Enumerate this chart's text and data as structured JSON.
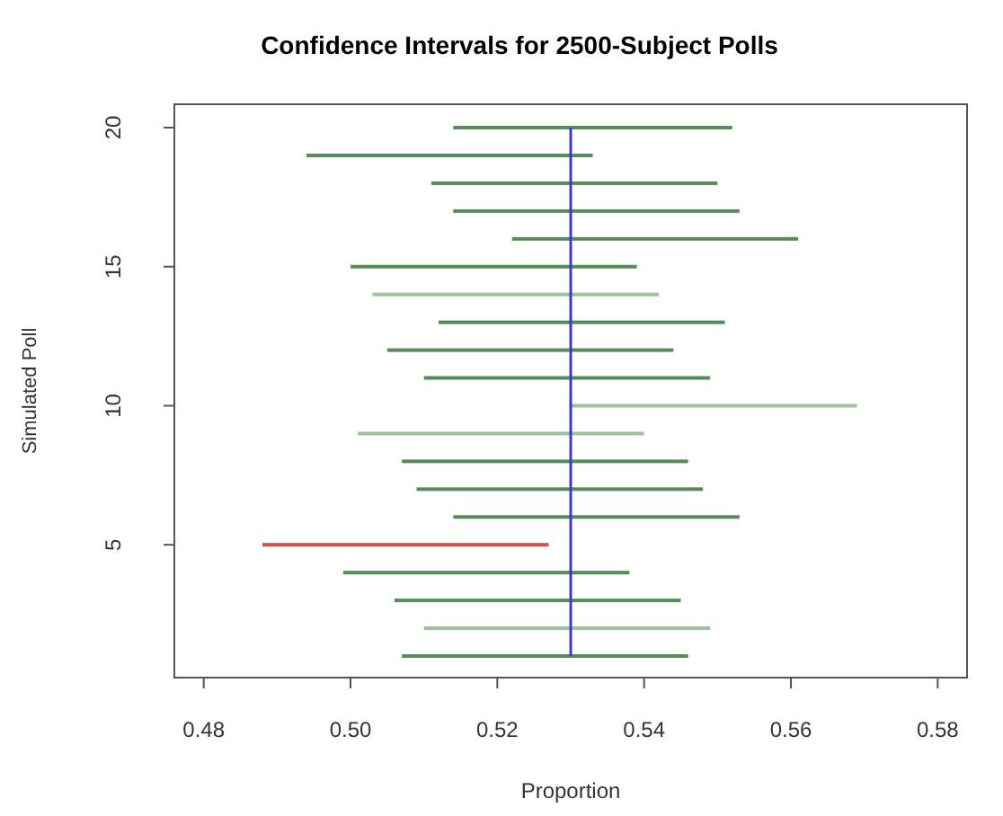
{
  "chart_data": {
    "type": "bar",
    "orientation": "horizontal",
    "title": "Confidence Intervals for 2500-Subject Polls",
    "xlabel": "Proportion",
    "ylabel": "Simulated Poll",
    "categories": [
      "20",
      null,
      null,
      null,
      null,
      "15",
      null,
      null,
      null,
      null,
      "10",
      null,
      null,
      null,
      null,
      "5",
      null,
      null,
      null,
      null
    ],
    "base": [
      0.514,
      0.494,
      0.511,
      0.514,
      0.522,
      0.5,
      0.503,
      0.512,
      0.505,
      0.51,
      0.53,
      0.501,
      0.507,
      0.509,
      0.514,
      0.488,
      0.499,
      0.506,
      0.51,
      0.507
    ],
    "values": [
      0.038,
      0.039,
      0.039,
      0.039,
      0.039,
      0.039,
      0.039,
      0.039,
      0.039,
      0.039,
      0.039,
      0.039,
      0.039,
      0.039,
      0.039,
      0.039,
      0.039,
      0.039,
      0.039,
      0.039
    ],
    "colors": [
      "#5a8a5a",
      "#5a8a5a",
      "#5a8a5a",
      "#5a8a5a",
      "#5a8a5a",
      "#5a8a5a",
      "#9cc29c",
      "#5a8a5a",
      "#5a8a5a",
      "#5a8a5a",
      "#9cc29c",
      "#9cc29c",
      "#5a8a5a",
      "#5a8a5a",
      "#5a8a5a",
      "#d05050",
      "#5a8a5a",
      "#5a8a5a",
      "#9cc29c",
      "#5a8a5a"
    ],
    "xlim": [
      0.476,
      0.584
    ],
    "xticks": [
      {
        "value": 0.48,
        "label": "0.48"
      },
      {
        "value": 0.5,
        "label": "0.50"
      },
      {
        "value": 0.52,
        "label": "0.52"
      },
      {
        "value": 0.54,
        "label": "0.54"
      },
      {
        "value": 0.56,
        "label": "0.56"
      },
      {
        "value": 0.58,
        "label": "0.58"
      }
    ],
    "ref_lines": [
      {
        "axis": "x",
        "value": 0.53,
        "color": "#3a3ad0"
      }
    ],
    "grid": false
  }
}
